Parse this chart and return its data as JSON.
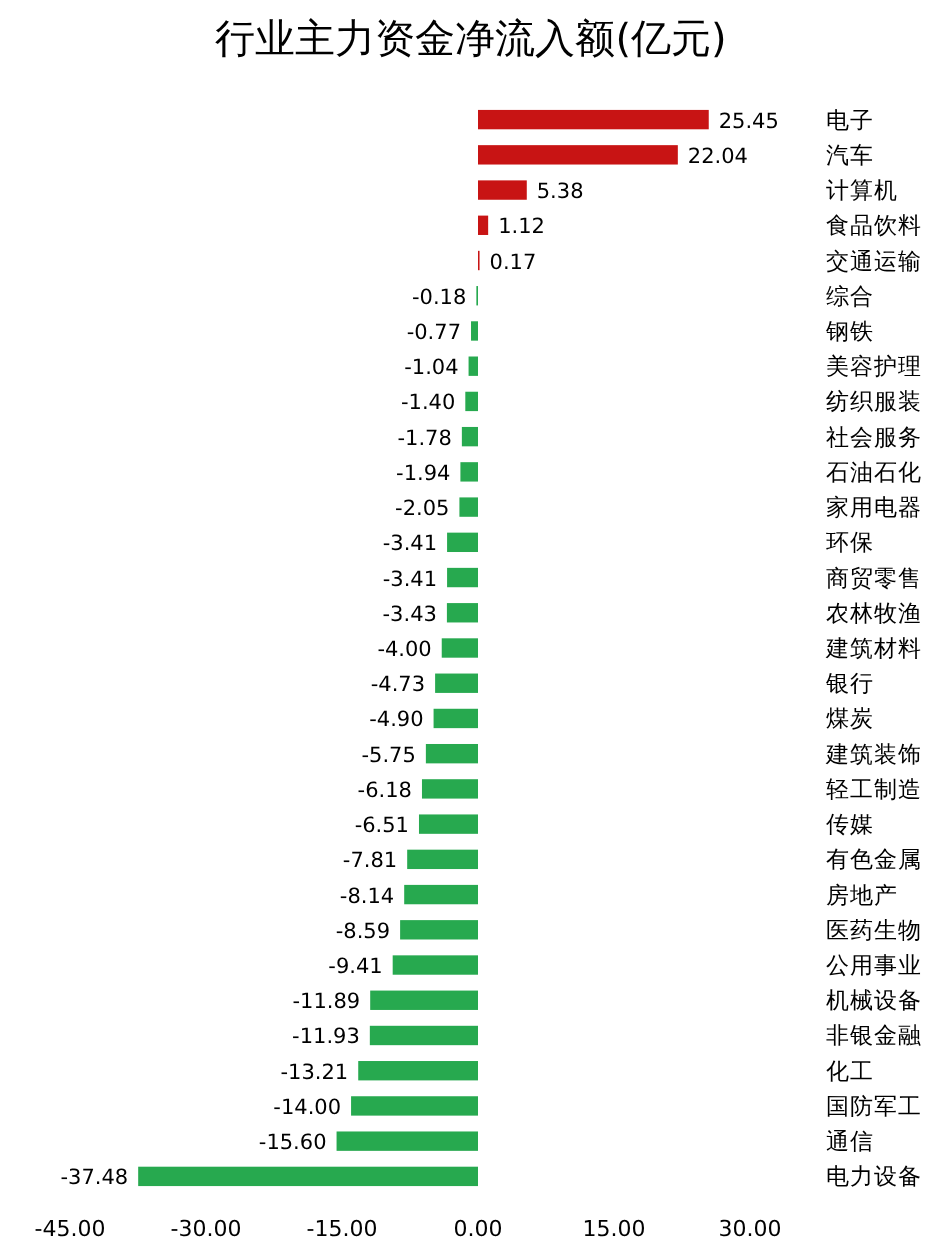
{
  "chart_data": {
    "type": "bar",
    "orientation": "horizontal",
    "title": "行业主力资金净流入额(亿元)",
    "categories": [
      "电子",
      "汽车",
      "计算机",
      "食品饮料",
      "交通运输",
      "综合",
      "钢铁",
      "美容护理",
      "纺织服装",
      "社会服务",
      "石油石化",
      "家用电器",
      "环保",
      "商贸零售",
      "农林牧渔",
      "建筑材料",
      "银行",
      "煤炭",
      "建筑装饰",
      "轻工制造",
      "传媒",
      "有色金属",
      "房地产",
      "医药生物",
      "公用事业",
      "机械设备",
      "非银金融",
      "化工",
      "国防军工",
      "通信",
      "电力设备"
    ],
    "values": [
      25.45,
      22.04,
      5.38,
      1.12,
      0.17,
      -0.18,
      -0.77,
      -1.04,
      -1.4,
      -1.78,
      -1.94,
      -2.05,
      -3.41,
      -3.41,
      -3.43,
      -4.0,
      -4.73,
      -4.9,
      -5.75,
      -6.18,
      -6.51,
      -7.81,
      -8.14,
      -8.59,
      -9.41,
      -11.89,
      -11.93,
      -13.21,
      -14.0,
      -15.6,
      -37.48
    ],
    "value_labels": [
      "25.45",
      "22.04",
      "5.38",
      "1.12",
      "0.17",
      "-0.18",
      "-0.77",
      "-1.04",
      "-1.40",
      "-1.78",
      "-1.94",
      "-2.05",
      "-3.41",
      "-3.41",
      "-3.43",
      "-4.00",
      "-4.73",
      "-4.90",
      "-5.75",
      "-6.18",
      "-6.51",
      "-7.81",
      "-8.14",
      "-8.59",
      "-9.41",
      "-11.89",
      "-11.93",
      "-13.21",
      "-14.00",
      "-15.60",
      "-37.48"
    ],
    "colors": [
      "#c81414",
      "#c81414",
      "#c81414",
      "#c81414",
      "#c81414",
      "#27a94f",
      "#27a94f",
      "#27a94f",
      "#27a94f",
      "#27a94f",
      "#27a94f",
      "#27a94f",
      "#27a94f",
      "#27a94f",
      "#27a94f",
      "#27a94f",
      "#27a94f",
      "#27a94f",
      "#27a94f",
      "#27a94f",
      "#27a94f",
      "#27a94f",
      "#27a94f",
      "#27a94f",
      "#27a94f",
      "#27a94f",
      "#27a94f",
      "#27a94f",
      "#27a94f",
      "#27a94f",
      "#27a94f"
    ],
    "xlim": [
      -45,
      30
    ],
    "xticks": [
      {
        "value": -45,
        "label": "-45.00"
      },
      {
        "value": -30,
        "label": "-30.00"
      },
      {
        "value": -15,
        "label": "-15.00"
      },
      {
        "value": 0,
        "label": "0.00"
      },
      {
        "value": 15,
        "label": "15.00"
      },
      {
        "value": 30,
        "label": "30.00"
      }
    ]
  }
}
